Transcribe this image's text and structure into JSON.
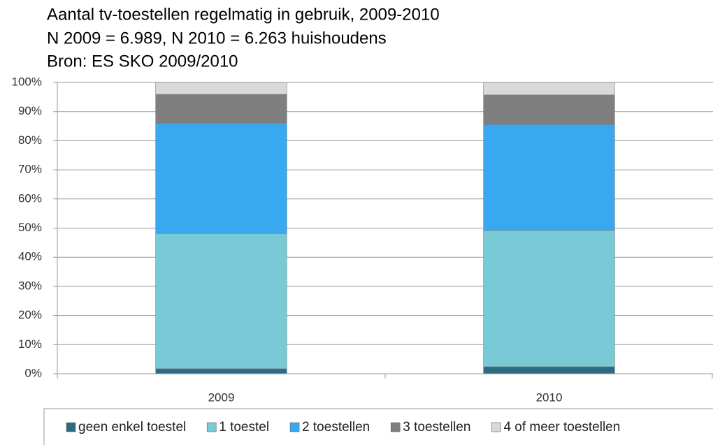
{
  "chart_data": {
    "type": "stacked_bar",
    "title": "Aantal tv-toestellen regelmatig in gebruik, 2009-2010",
    "subtitle": "N 2009 = 6.989, N 2010 = 6.263 huishoudens",
    "source": "Bron: ES SKO 2009/2010",
    "categories": [
      "2009",
      "2010"
    ],
    "series": [
      {
        "name": "geen enkel toestel",
        "color": "#2e6b82",
        "values": [
          1.7,
          2.4
        ]
      },
      {
        "name": "1 toestel",
        "color": "#78cbd6",
        "values": [
          46.5,
          46.8
        ]
      },
      {
        "name": "2 toestellen",
        "color": "#38a8f0",
        "values": [
          37.9,
          36.4
        ]
      },
      {
        "name": "3 toestellen",
        "color": "#7f7f7f",
        "values": [
          9.8,
          10.1
        ]
      },
      {
        "name": "4 of meer toestellen",
        "color": "#d9d9d9",
        "values": [
          4.1,
          4.3
        ]
      }
    ],
    "ylim": [
      0,
      100
    ],
    "yticks": [
      {
        "value": 0,
        "label": "0%"
      },
      {
        "value": 10,
        "label": "10%"
      },
      {
        "value": 20,
        "label": "20%"
      },
      {
        "value": 30,
        "label": "30%"
      },
      {
        "value": 40,
        "label": "40%"
      },
      {
        "value": 50,
        "label": "50%"
      },
      {
        "value": 60,
        "label": "60%"
      },
      {
        "value": 70,
        "label": "70%"
      },
      {
        "value": 80,
        "label": "80%"
      },
      {
        "value": 90,
        "label": "90%"
      },
      {
        "value": 100,
        "label": "100%"
      }
    ],
    "grid": true,
    "legend": "bottom"
  }
}
